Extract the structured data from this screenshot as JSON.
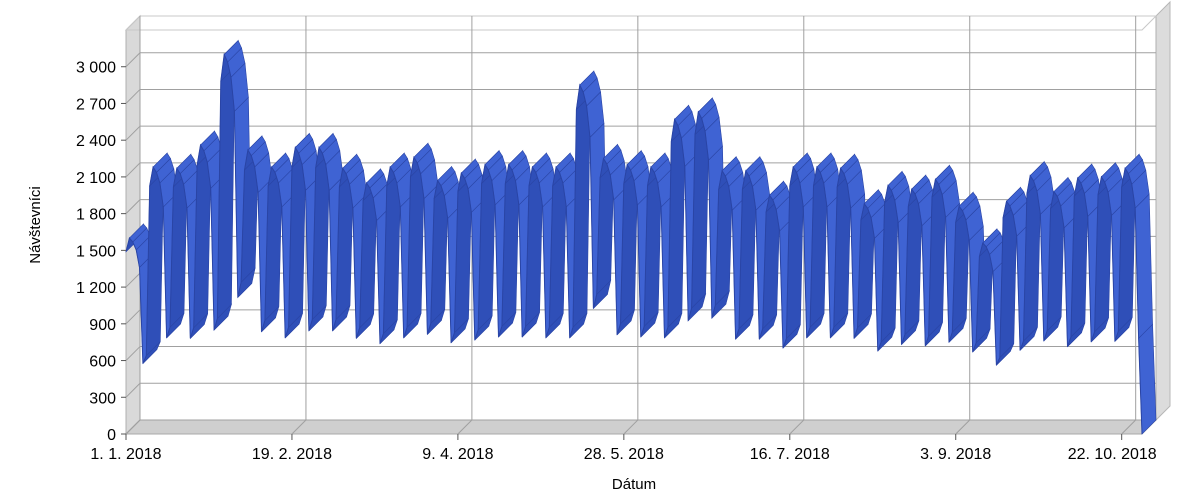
{
  "chart_data": {
    "type": "area",
    "title": "",
    "xlabel": "Dátum",
    "ylabel": "Návštevníci",
    "ylim": [
      0,
      3300
    ],
    "yticks": [
      0,
      300,
      600,
      900,
      1200,
      1500,
      1800,
      2100,
      2400,
      2700,
      3000
    ],
    "ytick_labels": [
      "0",
      "300",
      "600",
      "900",
      "1 200",
      "1 500",
      "1 800",
      "2 100",
      "2 400",
      "2 700",
      "3 000"
    ],
    "xticks": [
      "2018-01-01",
      "2018-02-19",
      "2018-04-09",
      "2018-05-28",
      "2018-07-16",
      "2018-09-03",
      "2018-10-22"
    ],
    "xtick_labels": [
      "1. 1. 2018",
      "19. 2. 2018",
      "9. 4. 2018",
      "28. 5. 2018",
      "16. 7. 2018",
      "3. 9. 2018",
      "22. 10. 2018"
    ],
    "x_start": "2018-01-01",
    "x_end": "2018-10-28",
    "grid": true,
    "series_color": "#3f63d3",
    "weekly_pattern": {
      "weekday_peak_fraction": [
        0.93,
        1.0,
        0.98,
        0.94,
        0.85,
        0.36,
        0.4
      ]
    },
    "weekly_peaks": [
      1600,
      2180,
      2170,
      2360,
      3100,
      2320,
      2180,
      2340,
      2340,
      2170,
      2050,
      2180,
      2260,
      2070,
      2130,
      2200,
      2200,
      2180,
      2180,
      2850,
      2250,
      2200,
      2180,
      2570,
      2630,
      2150,
      2150,
      1950,
      2180,
      2180,
      2170,
      1880,
      2030,
      2000,
      2080,
      1860,
      1560,
      1900,
      2110,
      1980,
      2090,
      2100,
      2170,
      2150,
      2150
    ],
    "last_value": 0
  }
}
